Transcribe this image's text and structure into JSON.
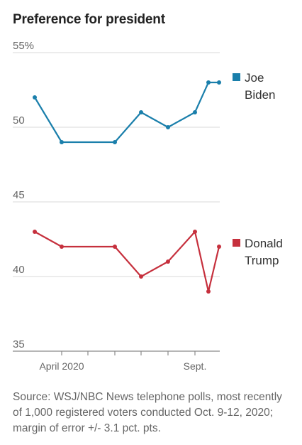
{
  "title": "Preference for president",
  "source": "Source: WSJ/NBC News telephone polls, most recently of 1,000 registered voters conducted Oct. 9-12, 2020; margin of error +/- 3.1 pct. pts.",
  "chart_data": {
    "type": "line",
    "ylim": [
      35,
      55
    ],
    "yticks": [
      "55%",
      "50",
      "45",
      "40",
      "35"
    ],
    "xtick_labels": [
      "April 2020",
      "Sept."
    ],
    "grid": true,
    "legend": "right",
    "series": [
      {
        "name": "Joe Biden",
        "label_lines": [
          "Joe",
          "Biden"
        ],
        "color": "#1a7fab",
        "values": [
          52,
          49,
          49,
          51,
          50,
          51,
          53,
          53
        ]
      },
      {
        "name": "Donald Trump",
        "label_lines": [
          "Donald",
          "Trump"
        ],
        "color": "#c6303d",
        "values": [
          43,
          42,
          42,
          40,
          41,
          43,
          39,
          42
        ]
      }
    ]
  }
}
